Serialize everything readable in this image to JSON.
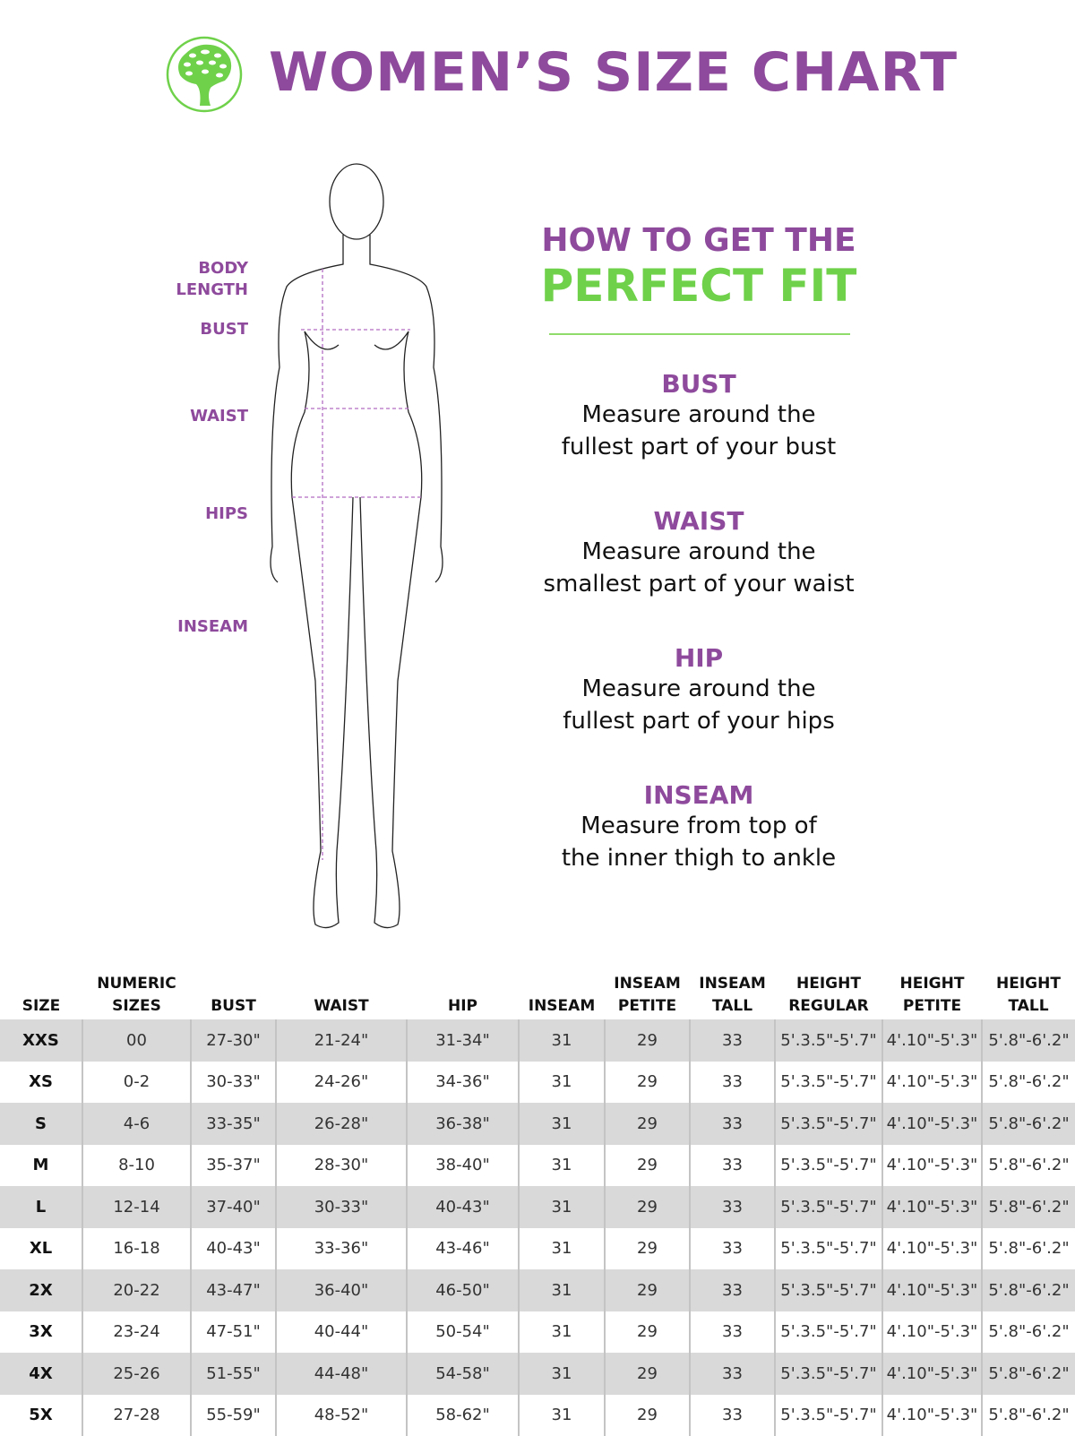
{
  "header": {
    "title": "WOMEN’S SIZE CHART",
    "logo": "tree-logo",
    "logo_color": "#6fd14a"
  },
  "figure_labels": [
    "BODY LENGTH",
    "BUST",
    "WAIST",
    "HIPS",
    "INSEAM"
  ],
  "guide": {
    "line1": "HOW TO GET THE",
    "line2": "PERFECT FIT",
    "sections": [
      {
        "title": "BUST",
        "desc1": "Measure around the",
        "desc2": "fullest part of your bust"
      },
      {
        "title": "WAIST",
        "desc1": "Measure around the",
        "desc2": "smallest part of your waist"
      },
      {
        "title": "HIP",
        "desc1": "Measure around the",
        "desc2": "fullest part of your hips"
      },
      {
        "title": "INSEAM",
        "desc1": "Measure from top of",
        "desc2": "the inner thigh to ankle"
      }
    ]
  },
  "colors": {
    "purple": "#8e4a9c",
    "green": "#6fd14a",
    "row_shade": "#d9d9d9"
  },
  "table": {
    "headers": [
      [
        "SIZE"
      ],
      [
        "NUMERIC",
        "SIZES"
      ],
      [
        "BUST"
      ],
      [
        "WAIST"
      ],
      [
        "HIP"
      ],
      [
        "INSEAM"
      ],
      [
        "INSEAM",
        "PETITE"
      ],
      [
        "INSEAM",
        "TALL"
      ],
      [
        "HEIGHT",
        "REGULAR"
      ],
      [
        "HEIGHT",
        "PETITE"
      ],
      [
        "HEIGHT",
        "TALL"
      ]
    ],
    "rows": [
      [
        "XXS",
        "00",
        "27-30\"",
        "21-24\"",
        "31-34\"",
        "31",
        "29",
        "33",
        "5'.3.5\"-5'.7\"",
        "4'.10\"-5'.3\"",
        "5'.8\"-6'.2\""
      ],
      [
        "XS",
        "0-2",
        "30-33\"",
        "24-26\"",
        "34-36\"",
        "31",
        "29",
        "33",
        "5'.3.5\"-5'.7\"",
        "4'.10\"-5'.3\"",
        "5'.8\"-6'.2\""
      ],
      [
        "S",
        "4-6",
        "33-35\"",
        "26-28\"",
        "36-38\"",
        "31",
        "29",
        "33",
        "5'.3.5\"-5'.7\"",
        "4'.10\"-5'.3\"",
        "5'.8\"-6'.2\""
      ],
      [
        "M",
        "8-10",
        "35-37\"",
        "28-30\"",
        "38-40\"",
        "31",
        "29",
        "33",
        "5'.3.5\"-5'.7\"",
        "4'.10\"-5'.3\"",
        "5'.8\"-6'.2\""
      ],
      [
        "L",
        "12-14",
        "37-40\"",
        "30-33\"",
        "40-43\"",
        "31",
        "29",
        "33",
        "5'.3.5\"-5'.7\"",
        "4'.10\"-5'.3\"",
        "5'.8\"-6'.2\""
      ],
      [
        "XL",
        "16-18",
        "40-43\"",
        "33-36\"",
        "43-46\"",
        "31",
        "29",
        "33",
        "5'.3.5\"-5'.7\"",
        "4'.10\"-5'.3\"",
        "5'.8\"-6'.2\""
      ],
      [
        "2X",
        "20-22",
        "43-47\"",
        "36-40\"",
        "46-50\"",
        "31",
        "29",
        "33",
        "5'.3.5\"-5'.7\"",
        "4'.10\"-5'.3\"",
        "5'.8\"-6'.2\""
      ],
      [
        "3X",
        "23-24",
        "47-51\"",
        "40-44\"",
        "50-54\"",
        "31",
        "29",
        "33",
        "5'.3.5\"-5'.7\"",
        "4'.10\"-5'.3\"",
        "5'.8\"-6'.2\""
      ],
      [
        "4X",
        "25-26",
        "51-55\"",
        "44-48\"",
        "54-58\"",
        "31",
        "29",
        "33",
        "5'.3.5\"-5'.7\"",
        "4'.10\"-5'.3\"",
        "5'.8\"-6'.2\""
      ],
      [
        "5X",
        "27-28",
        "55-59\"",
        "48-52\"",
        "58-62\"",
        "31",
        "29",
        "33",
        "5'.3.5\"-5'.7\"",
        "4'.10\"-5'.3\"",
        "5'.8\"-6'.2\""
      ]
    ]
  }
}
